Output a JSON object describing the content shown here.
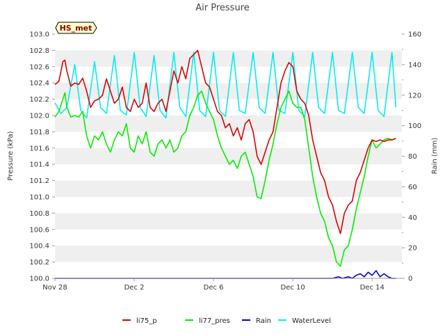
{
  "chart_data": {
    "type": "line",
    "title": "Air Pressure",
    "station_badge": "HS_met",
    "xlabel": "",
    "ylabel": "Pressure (kPa)",
    "y2label": "Rain (mm)",
    "x_unit": "days since Nov 28",
    "xlim": [
      0,
      17.5
    ],
    "ylim": [
      100.0,
      103.0
    ],
    "y2lim": [
      0,
      160
    ],
    "x_ticks": [
      {
        "x": 0,
        "label": "Nov 28"
      },
      {
        "x": 4,
        "label": "Dec 2"
      },
      {
        "x": 8,
        "label": "Dec 6"
      },
      {
        "x": 12,
        "label": "Dec 10"
      },
      {
        "x": 16,
        "label": "Dec 14"
      }
    ],
    "y_ticks": [
      "100.0",
      "100.2",
      "100.4",
      "100.6",
      "100.8",
      "101.0",
      "101.2",
      "101.4",
      "101.6",
      "101.8",
      "102.0",
      "102.2",
      "102.4",
      "102.6",
      "102.8",
      "103.0"
    ],
    "y2_ticks": [
      "0",
      "20",
      "40",
      "60",
      "80",
      "100",
      "120",
      "140",
      "160"
    ],
    "grid": "horizontal bands",
    "legend_position": "bottom",
    "series": [
      {
        "name": "li75_p",
        "axis": "left",
        "color": "#dd0000",
        "x": [
          0,
          0.2,
          0.4,
          0.5,
          0.6,
          0.8,
          1.0,
          1.2,
          1.4,
          1.6,
          1.8,
          2.0,
          2.2,
          2.4,
          2.6,
          2.8,
          3.0,
          3.2,
          3.4,
          3.6,
          3.8,
          4.0,
          4.2,
          4.4,
          4.6,
          4.8,
          5.0,
          5.2,
          5.4,
          5.6,
          5.8,
          6.0,
          6.2,
          6.4,
          6.6,
          6.8,
          7.0,
          7.2,
          7.4,
          7.6,
          7.8,
          8.0,
          8.2,
          8.4,
          8.6,
          8.8,
          9.0,
          9.2,
          9.4,
          9.6,
          9.8,
          10.0,
          10.2,
          10.4,
          10.6,
          10.8,
          11.0,
          11.2,
          11.4,
          11.6,
          11.8,
          12.0,
          12.2,
          12.4,
          12.6,
          12.8,
          13.0,
          13.2,
          13.4,
          13.6,
          13.8,
          14.0,
          14.2,
          14.4,
          14.6,
          14.8,
          15.0,
          15.2,
          15.4,
          15.6,
          15.8,
          16.0,
          16.2,
          16.4,
          16.6,
          16.8,
          17.0,
          17.2
        ],
        "values": [
          102.38,
          102.42,
          102.66,
          102.68,
          102.55,
          102.36,
          102.4,
          102.38,
          102.46,
          102.3,
          102.1,
          102.18,
          102.2,
          102.25,
          102.45,
          102.3,
          102.15,
          102.2,
          102.35,
          102.1,
          102.05,
          102.2,
          102.1,
          102.15,
          102.4,
          102.1,
          102.05,
          102.15,
          102.2,
          102.05,
          102.3,
          102.55,
          102.4,
          102.6,
          102.45,
          102.7,
          102.75,
          102.8,
          102.6,
          102.4,
          102.35,
          102.2,
          102.05,
          102.0,
          101.85,
          101.9,
          101.75,
          101.85,
          101.7,
          101.9,
          101.95,
          101.8,
          101.5,
          101.4,
          101.55,
          101.7,
          101.8,
          102.1,
          102.4,
          102.55,
          102.65,
          102.6,
          102.3,
          102.2,
          102.15,
          102.0,
          101.7,
          101.5,
          101.3,
          101.2,
          101.0,
          100.9,
          100.7,
          100.55,
          100.8,
          100.9,
          100.95,
          101.2,
          101.3,
          101.45,
          101.6,
          101.7,
          101.68,
          101.7,
          101.68,
          101.7,
          101.7,
          101.72
        ]
      },
      {
        "name": "li77_pres",
        "axis": "left",
        "color": "#00ee00",
        "x": [
          0,
          0.2,
          0.4,
          0.5,
          0.6,
          0.8,
          1.0,
          1.2,
          1.4,
          1.6,
          1.8,
          2.0,
          2.2,
          2.4,
          2.6,
          2.8,
          3.0,
          3.2,
          3.4,
          3.6,
          3.8,
          4.0,
          4.2,
          4.4,
          4.6,
          4.8,
          5.0,
          5.2,
          5.4,
          5.6,
          5.8,
          6.0,
          6.2,
          6.4,
          6.6,
          6.8,
          7.0,
          7.2,
          7.4,
          7.6,
          7.8,
          8.0,
          8.2,
          8.4,
          8.6,
          8.8,
          9.0,
          9.2,
          9.4,
          9.6,
          9.8,
          10.0,
          10.2,
          10.4,
          10.6,
          10.8,
          11.0,
          11.2,
          11.4,
          11.6,
          11.8,
          12.0,
          12.2,
          12.4,
          12.6,
          12.8,
          13.0,
          13.2,
          13.4,
          13.6,
          13.8,
          14.0,
          14.2,
          14.4,
          14.6,
          14.8,
          15.0,
          15.2,
          15.4,
          15.6,
          15.8,
          16.0,
          16.2,
          16.4,
          16.6,
          16.8,
          17.0,
          17.2
        ],
        "values": [
          101.98,
          102.05,
          102.2,
          102.28,
          102.1,
          101.98,
          102.0,
          101.98,
          102.05,
          101.75,
          101.6,
          101.75,
          101.7,
          101.8,
          101.65,
          101.55,
          101.7,
          101.8,
          101.75,
          101.9,
          101.6,
          101.55,
          101.75,
          101.65,
          101.8,
          101.55,
          101.5,
          101.65,
          101.7,
          101.6,
          101.7,
          101.55,
          101.6,
          101.75,
          101.8,
          102.0,
          102.1,
          102.25,
          102.3,
          102.15,
          102.05,
          101.95,
          101.75,
          101.6,
          101.5,
          101.4,
          101.45,
          101.35,
          101.5,
          101.55,
          101.4,
          101.25,
          101.0,
          100.98,
          101.2,
          101.45,
          101.65,
          101.9,
          102.1,
          102.2,
          102.3,
          102.15,
          102.1,
          102.1,
          101.95,
          101.6,
          101.25,
          101.0,
          100.8,
          100.7,
          100.5,
          100.4,
          100.2,
          100.15,
          100.35,
          100.4,
          100.6,
          100.85,
          101.05,
          101.25,
          101.5,
          101.7,
          101.6,
          101.65,
          101.7,
          101.72,
          101.7,
          101.72
        ]
      },
      {
        "name": "Rain",
        "axis": "right",
        "color": "#0000cc",
        "x": [
          0,
          14.0,
          14.3,
          14.5,
          14.8,
          15.0,
          15.2,
          15.4,
          15.6,
          15.8,
          16.0,
          16.2,
          16.4,
          16.6,
          16.8,
          17.0,
          17.2
        ],
        "values": [
          0,
          0,
          1,
          0,
          1,
          0,
          2,
          3,
          1,
          4,
          2,
          5,
          1,
          3,
          1,
          0,
          0
        ]
      },
      {
        "name": "WaterLevel",
        "axis": "right",
        "color": "#00eeee",
        "x": [
          0,
          0.3,
          0.6,
          1.0,
          1.3,
          1.6,
          2.0,
          2.3,
          2.6,
          3.0,
          3.3,
          3.6,
          4.0,
          4.3,
          4.6,
          5.0,
          5.3,
          5.6,
          6.0,
          6.3,
          6.6,
          7.0,
          7.3,
          7.6,
          8.0,
          8.3,
          8.6,
          9.0,
          9.3,
          9.6,
          10.0,
          10.3,
          10.6,
          11.0,
          11.3,
          11.6,
          12.0,
          12.3,
          12.6,
          13.0,
          13.3,
          13.6,
          14.0,
          14.3,
          14.6,
          15.0,
          15.3,
          15.6,
          16.0,
          16.3,
          16.6,
          17.0,
          17.2
        ],
        "values": [
          115,
          108,
          112,
          140,
          110,
          105,
          142,
          112,
          108,
          146,
          110,
          107,
          148,
          112,
          106,
          146,
          110,
          105,
          148,
          112,
          106,
          148,
          110,
          106,
          148,
          110,
          106,
          148,
          110,
          108,
          148,
          112,
          108,
          148,
          110,
          108,
          148,
          110,
          106,
          148,
          112,
          108,
          148,
          110,
          108,
          148,
          112,
          108,
          148,
          110,
          106,
          148,
          112
        ]
      }
    ]
  }
}
